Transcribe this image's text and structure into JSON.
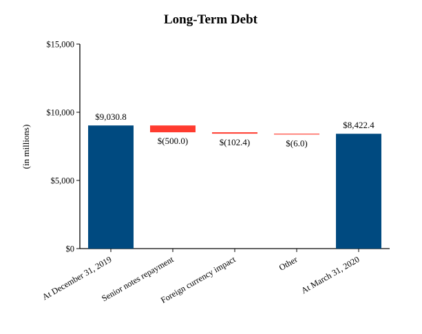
{
  "chart_data": {
    "type": "bar",
    "subtype": "waterfall",
    "title": "Long-Term Debt",
    "ylabel": "(in millions)",
    "xlabel": "",
    "ylim": [
      0,
      15000
    ],
    "yticks": [
      0,
      5000,
      10000,
      15000
    ],
    "ytick_labels": [
      "$0",
      "$5,000",
      "$10,000",
      "$15,000"
    ],
    "grid": false,
    "categories": [
      "At December 31, 2019",
      "Senior notes repayment",
      "Foreign currency impact",
      "Other",
      "At March 31, 2020"
    ],
    "steps": [
      {
        "kind": "total",
        "value": 9030.8,
        "label": "$9,030.8"
      },
      {
        "kind": "change",
        "value": -500.0,
        "label": "$(500.0)"
      },
      {
        "kind": "change",
        "value": -102.4,
        "label": "$(102.4)"
      },
      {
        "kind": "change",
        "value": -6.0,
        "label": "$(6.0)"
      },
      {
        "kind": "total",
        "value": 8422.4,
        "label": "$8,422.4"
      }
    ],
    "colors": {
      "total": "#004a80",
      "decrease": "#ff3b2f",
      "axis": "#000000"
    }
  }
}
